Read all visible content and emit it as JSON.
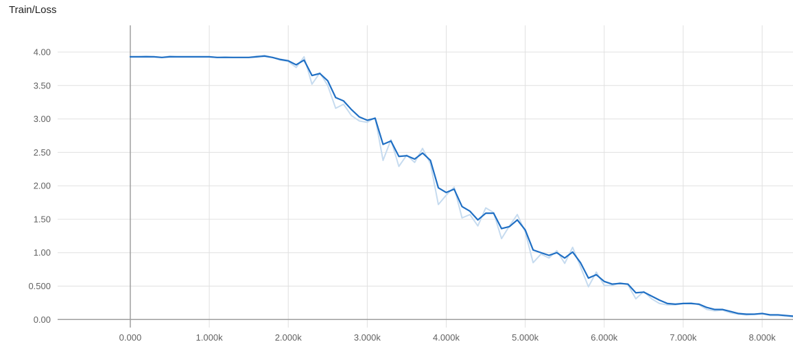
{
  "chart_data": {
    "type": "line",
    "title": "Train/Loss",
    "xlabel": "",
    "ylabel": "",
    "xlim": [
      -920,
      8390
    ],
    "ylim": [
      -0.12,
      4.4
    ],
    "x_ticks": [
      0,
      1000,
      2000,
      3000,
      4000,
      5000,
      6000,
      7000,
      8000
    ],
    "x_tick_labels": [
      "0.000",
      "1.000k",
      "2.000k",
      "3.000k",
      "4.000k",
      "5.000k",
      "6.000k",
      "7.000k",
      "8.000k"
    ],
    "y_ticks": [
      0,
      0.5,
      1.0,
      1.5,
      2.0,
      2.5,
      3.0,
      3.5,
      4.0
    ],
    "y_tick_labels": [
      "0.00",
      "0.500",
      "1.00",
      "1.50",
      "2.00",
      "2.50",
      "3.00",
      "3.50",
      "4.00"
    ],
    "grid": true,
    "legend": "none",
    "series": [
      {
        "role": "raw",
        "color": "#c6dbef",
        "x": [
          0,
          100,
          200,
          300,
          400,
          500,
          600,
          700,
          800,
          900,
          1000,
          1100,
          1200,
          1300,
          1400,
          1500,
          1600,
          1700,
          1800,
          1900,
          2000,
          2100,
          2200,
          2300,
          2400,
          2500,
          2600,
          2700,
          2800,
          2900,
          3000,
          3100,
          3200,
          3300,
          3400,
          3500,
          3600,
          3700,
          3800,
          3900,
          4000,
          4100,
          4200,
          4300,
          4400,
          4500,
          4600,
          4700,
          4800,
          4900,
          5000,
          5100,
          5200,
          5300,
          5400,
          5500,
          5600,
          5700,
          5800,
          5900,
          6000,
          6100,
          6200,
          6300,
          6400,
          6500,
          6600,
          6700,
          6800,
          6900,
          7000,
          7100,
          7200,
          7300,
          7400,
          7500,
          7600,
          7700,
          7800,
          7900,
          8000,
          8100,
          8200,
          8300,
          8390
        ],
        "y": [
          3.93,
          3.93,
          3.94,
          3.93,
          3.92,
          3.94,
          3.93,
          3.93,
          3.93,
          3.93,
          3.93,
          3.92,
          3.93,
          3.92,
          3.92,
          3.92,
          3.94,
          3.95,
          3.92,
          3.88,
          3.86,
          3.77,
          3.93,
          3.52,
          3.69,
          3.5,
          3.16,
          3.22,
          3.05,
          2.97,
          2.95,
          3.02,
          2.38,
          2.69,
          2.29,
          2.46,
          2.35,
          2.56,
          2.33,
          1.72,
          1.86,
          1.98,
          1.52,
          1.57,
          1.4,
          1.67,
          1.6,
          1.21,
          1.4,
          1.57,
          1.31,
          0.85,
          0.98,
          0.92,
          1.03,
          0.84,
          1.08,
          0.79,
          0.49,
          0.71,
          0.51,
          0.51,
          0.55,
          0.52,
          0.31,
          0.42,
          0.31,
          0.24,
          0.22,
          0.22,
          0.24,
          0.25,
          0.22,
          0.15,
          0.13,
          0.14,
          0.1,
          0.08,
          0.07,
          0.08,
          0.09,
          0.06,
          0.06,
          0.05,
          0.04
        ]
      },
      {
        "role": "smoothed",
        "color": "#1f6fc4",
        "x": [
          0,
          100,
          200,
          300,
          400,
          500,
          600,
          700,
          800,
          900,
          1000,
          1100,
          1200,
          1300,
          1400,
          1500,
          1600,
          1700,
          1800,
          1900,
          2000,
          2100,
          2200,
          2300,
          2400,
          2500,
          2600,
          2700,
          2800,
          2900,
          3000,
          3100,
          3200,
          3300,
          3400,
          3500,
          3600,
          3700,
          3800,
          3900,
          4000,
          4100,
          4200,
          4300,
          4400,
          4500,
          4600,
          4700,
          4800,
          4900,
          5000,
          5100,
          5200,
          5300,
          5400,
          5500,
          5600,
          5700,
          5800,
          5900,
          6000,
          6100,
          6200,
          6300,
          6400,
          6500,
          6600,
          6700,
          6800,
          6900,
          7000,
          7100,
          7200,
          7300,
          7400,
          7500,
          7600,
          7700,
          7800,
          7900,
          8000,
          8100,
          8200,
          8300,
          8390
        ],
        "y": [
          3.93,
          3.93,
          3.93,
          3.93,
          3.92,
          3.93,
          3.93,
          3.93,
          3.93,
          3.93,
          3.93,
          3.92,
          3.92,
          3.92,
          3.92,
          3.92,
          3.93,
          3.94,
          3.92,
          3.89,
          3.87,
          3.81,
          3.88,
          3.65,
          3.68,
          3.57,
          3.32,
          3.27,
          3.14,
          3.03,
          2.98,
          3.01,
          2.62,
          2.67,
          2.44,
          2.45,
          2.4,
          2.49,
          2.38,
          1.97,
          1.9,
          1.95,
          1.69,
          1.62,
          1.49,
          1.59,
          1.59,
          1.36,
          1.39,
          1.49,
          1.34,
          1.04,
          1.0,
          0.96,
          1.0,
          0.92,
          1.01,
          0.85,
          0.62,
          0.67,
          0.57,
          0.53,
          0.54,
          0.53,
          0.4,
          0.41,
          0.35,
          0.29,
          0.24,
          0.23,
          0.24,
          0.24,
          0.23,
          0.18,
          0.15,
          0.15,
          0.12,
          0.09,
          0.08,
          0.08,
          0.09,
          0.07,
          0.07,
          0.06,
          0.05
        ]
      }
    ]
  }
}
